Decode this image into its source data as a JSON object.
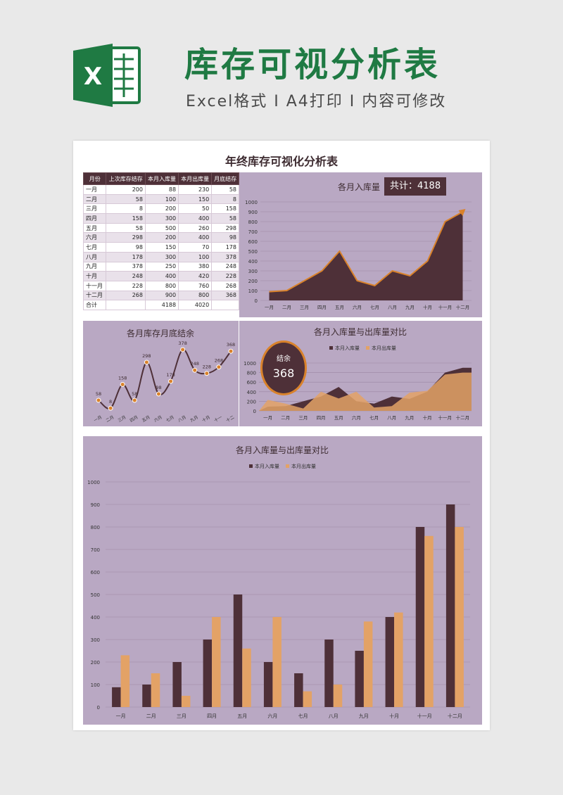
{
  "header": {
    "logo_letter": "X",
    "title": "库存可视分析表",
    "subtitle": "Excel格式 I A4打印 I 内容可修改"
  },
  "sheet": {
    "title": "年终库存可视化分析表"
  },
  "table": {
    "columns": [
      "月份",
      "上次库存结存",
      "本月入库量",
      "本月出库量",
      "月底结存"
    ],
    "rows": [
      [
        "一月",
        "200",
        "88",
        "230",
        "58"
      ],
      [
        "二月",
        "58",
        "100",
        "150",
        "8"
      ],
      [
        "三月",
        "8",
        "200",
        "50",
        "158"
      ],
      [
        "四月",
        "158",
        "300",
        "400",
        "58"
      ],
      [
        "五月",
        "58",
        "500",
        "260",
        "298"
      ],
      [
        "六月",
        "298",
        "200",
        "400",
        "98"
      ],
      [
        "七月",
        "98",
        "150",
        "70",
        "178"
      ],
      [
        "八月",
        "178",
        "300",
        "100",
        "378"
      ],
      [
        "九月",
        "378",
        "250",
        "380",
        "248"
      ],
      [
        "十月",
        "248",
        "400",
        "420",
        "228"
      ],
      [
        "十一月",
        "228",
        "800",
        "760",
        "268"
      ],
      [
        "十二月",
        "268",
        "900",
        "800",
        "368"
      ]
    ],
    "total": {
      "label": "合计",
      "in": "4188",
      "out": "4020"
    }
  },
  "colors": {
    "dark": "#4e3038",
    "orange": "#d9822b",
    "light_orange": "#e3a266",
    "panel": "#b9a8c3",
    "green": "#1f7a43"
  },
  "chart_data": [
    {
      "id": "monthly-in",
      "type": "area",
      "title": "各月入库量",
      "badge": "共计：4188",
      "categories": [
        "一月",
        "二月",
        "三月",
        "四月",
        "五月",
        "六月",
        "七月",
        "八月",
        "九月",
        "十月",
        "十一月",
        "十二月"
      ],
      "series": [
        {
          "values": [
            88,
            100,
            200,
            300,
            500,
            200,
            150,
            300,
            250,
            400,
            800,
            900
          ]
        }
      ],
      "ylim": [
        0,
        1000
      ],
      "yticks": [
        0,
        100,
        200,
        300,
        400,
        500,
        600,
        700,
        800,
        900,
        1000
      ]
    },
    {
      "id": "monthly-balance",
      "type": "line",
      "title": "各月库存月底结余",
      "categories": [
        "一月",
        "二月",
        "三月",
        "四月",
        "五月",
        "六月",
        "七月",
        "八月",
        "九月",
        "十月",
        "十一",
        "十二"
      ],
      "series": [
        {
          "values": [
            58,
            8,
            158,
            58,
            298,
            98,
            178,
            378,
            248,
            228,
            268,
            368
          ]
        }
      ],
      "ylim": [
        0,
        400
      ]
    },
    {
      "id": "in-out-area",
      "type": "area",
      "title": "各月入库量与出库量对比",
      "balance_label": "结余",
      "balance_value": "368",
      "categories": [
        "一月",
        "二月",
        "三月",
        "四月",
        "五月",
        "六月",
        "七月",
        "八月",
        "九月",
        "十月",
        "十一月",
        "十二月"
      ],
      "series": [
        {
          "name": "本月入库量",
          "values": [
            88,
            100,
            200,
            300,
            500,
            200,
            150,
            300,
            250,
            400,
            800,
            900
          ]
        },
        {
          "name": "本月出库量",
          "values": [
            230,
            150,
            50,
            400,
            260,
            400,
            70,
            100,
            380,
            420,
            760,
            800
          ]
        }
      ],
      "ylim": [
        0,
        1000
      ],
      "yticks": [
        0,
        200,
        400,
        600,
        800,
        1000
      ]
    },
    {
      "id": "in-out-bar",
      "type": "bar",
      "title": "各月入库量与出库量对比",
      "categories": [
        "一月",
        "二月",
        "三月",
        "四月",
        "五月",
        "六月",
        "七月",
        "八月",
        "九月",
        "十月",
        "十一月",
        "十二月"
      ],
      "series": [
        {
          "name": "本月入库量",
          "values": [
            88,
            100,
            200,
            300,
            500,
            200,
            150,
            300,
            250,
            400,
            800,
            900
          ]
        },
        {
          "name": "本月出库量",
          "values": [
            230,
            150,
            50,
            400,
            260,
            400,
            70,
            100,
            380,
            420,
            760,
            800
          ]
        }
      ],
      "ylim": [
        0,
        1000
      ],
      "yticks": [
        0,
        100,
        200,
        300,
        400,
        500,
        600,
        700,
        800,
        900,
        1000
      ]
    }
  ]
}
